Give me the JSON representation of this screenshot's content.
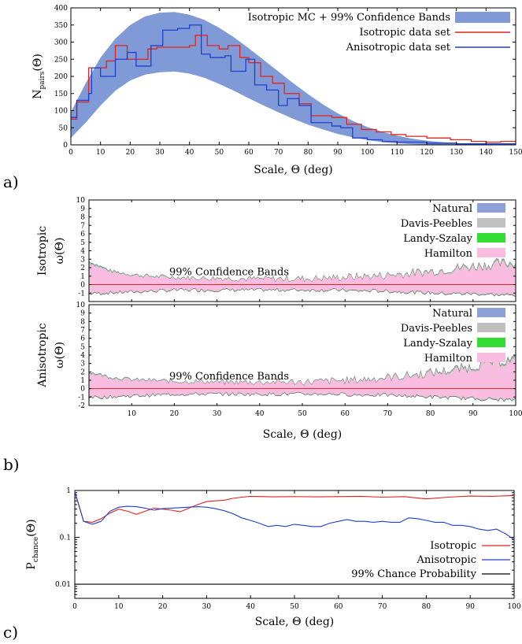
{
  "chart_data": [
    {
      "panel": "a)",
      "type": "line",
      "xlabel": "Scale, Θ (deg)",
      "ylabel_main": "N",
      "ylabel_sub": "pairs",
      "ylabel_tail": "(Θ)",
      "xlim": [
        0,
        150
      ],
      "ylim": [
        0,
        400
      ],
      "xticks": [
        "0",
        "10",
        "20",
        "30",
        "40",
        "50",
        "60",
        "70",
        "80",
        "90",
        "100",
        "110",
        "120",
        "130",
        "140",
        "150"
      ],
      "yticks": [
        "0",
        "50",
        "100",
        "150",
        "200",
        "250",
        "300",
        "350",
        "400"
      ],
      "legend": [
        "Isotropic MC + 99% Confidence Bands",
        "Isotropic data set",
        "Anisotropic data set"
      ],
      "legend_position": "top-right",
      "band": {
        "x": [
          0,
          5,
          10,
          15,
          20,
          25,
          30,
          35,
          40,
          45,
          50,
          55,
          60,
          65,
          70,
          75,
          80,
          85,
          90,
          95,
          100,
          105,
          110,
          115,
          120,
          125,
          130,
          135,
          140
        ],
        "lower": [
          20,
          65,
          115,
          158,
          188,
          205,
          212,
          214,
          208,
          196,
          178,
          158,
          136,
          115,
          95,
          76,
          59,
          45,
          32,
          22,
          14,
          8,
          4,
          2,
          1,
          0,
          0,
          0,
          0
        ],
        "upper": [
          95,
          180,
          255,
          310,
          350,
          375,
          386,
          388,
          380,
          365,
          342,
          314,
          282,
          248,
          214,
          180,
          148,
          118,
          92,
          70,
          52,
          38,
          27,
          18,
          12,
          8,
          5,
          3,
          2
        ]
      },
      "series": [
        {
          "name": "Isotropic data set",
          "color": "#e0231c",
          "steps": [
            [
              0,
              75
            ],
            [
              2,
              125
            ],
            [
              6,
              225
            ],
            [
              12,
              245
            ],
            [
              15,
              290
            ],
            [
              19,
              250
            ],
            [
              22,
              250
            ],
            [
              26,
              280
            ],
            [
              29,
              285
            ],
            [
              34,
              285
            ],
            [
              40,
              290
            ],
            [
              42,
              320
            ],
            [
              46,
              290
            ],
            [
              50,
              280
            ],
            [
              53,
              290
            ],
            [
              57,
              255
            ],
            [
              60,
              240
            ],
            [
              64,
              200
            ],
            [
              68,
              180
            ],
            [
              72,
              150
            ],
            [
              77,
              120
            ],
            [
              81,
              85
            ],
            [
              88,
              80
            ],
            [
              93,
              60
            ],
            [
              98,
              45
            ],
            [
              103,
              38
            ],
            [
              108,
              30
            ],
            [
              113,
              25
            ],
            [
              120,
              20
            ],
            [
              128,
              15
            ],
            [
              135,
              10
            ],
            [
              140,
              8
            ],
            [
              145,
              10
            ],
            [
              150,
              10
            ]
          ]
        },
        {
          "name": "Anisotropic data set",
          "color": "#1e3fd0",
          "steps": [
            [
              0,
              80
            ],
            [
              2,
              130
            ],
            [
              6,
              150
            ],
            [
              7,
              225
            ],
            [
              10,
              200
            ],
            [
              15,
              250
            ],
            [
              19,
              270
            ],
            [
              22,
              230
            ],
            [
              27,
              290
            ],
            [
              31,
              335
            ],
            [
              36,
              340
            ],
            [
              40,
              350
            ],
            [
              44,
              265
            ],
            [
              47,
              255
            ],
            [
              52,
              260
            ],
            [
              54,
              215
            ],
            [
              59,
              250
            ],
            [
              62,
              175
            ],
            [
              66,
              160
            ],
            [
              70,
              115
            ],
            [
              73,
              135
            ],
            [
              77,
              115
            ],
            [
              81,
              65
            ],
            [
              85,
              65
            ],
            [
              88,
              55
            ],
            [
              91,
              50
            ],
            [
              95,
              20
            ],
            [
              100,
              15
            ],
            [
              105,
              10
            ],
            [
              110,
              8
            ],
            [
              120,
              5
            ],
            [
              130,
              3
            ],
            [
              150,
              3
            ]
          ]
        }
      ]
    },
    {
      "panel": "b)",
      "type": "area",
      "xlabel": "Scale, Θ (deg)",
      "xlim": [
        0,
        100
      ],
      "xticks": [
        "10",
        "20",
        "30",
        "40",
        "50",
        "60",
        "70",
        "80",
        "90",
        "100"
      ],
      "subplots": [
        {
          "ylabel_top": "Isotropic",
          "ylabel": "ω(Θ)",
          "ylim": [
            -2,
            10
          ],
          "yticks": [
            "-1",
            "0",
            "1",
            "2",
            "3",
            "4",
            "5",
            "6",
            "7",
            "8",
            "9",
            "10"
          ],
          "annotation": "99% Confidence Bands",
          "legend": [
            "Natural",
            "Davis-Peebles",
            "Landy-Szalay",
            "Hamilton"
          ],
          "legend_colors": [
            "#8da1d8",
            "#c0c0c0",
            "#33dd33",
            "#f8bde0"
          ],
          "band_upper_approx": [
            2.5,
            1.4,
            1.0,
            0.8,
            0.7,
            0.6,
            0.6,
            0.5,
            0.5,
            0.5,
            0.5,
            0.6,
            0.7,
            0.8,
            1.0,
            1.2,
            1.5,
            1.8,
            2.0,
            2.2
          ],
          "band_lower_approx": [
            -1.0,
            -0.9,
            -0.8,
            -0.7,
            -0.6,
            -0.6,
            -0.6,
            -0.6,
            -0.6,
            -0.6,
            -0.6,
            -0.6,
            -0.7,
            -0.7,
            -0.8,
            -0.9,
            -1.0,
            -1.0,
            -1.1,
            -1.2
          ]
        },
        {
          "ylabel_top": "Anisotropic",
          "ylabel": "ω(Θ)",
          "ylim": [
            -2,
            10
          ],
          "yticks": [
            "-2",
            "-1",
            "0",
            "1",
            "2",
            "3",
            "4",
            "5",
            "6",
            "7",
            "8",
            "9",
            "10"
          ],
          "annotation": "99% Confidence Bands",
          "legend": [
            "Natural",
            "Davis-Peebles",
            "Landy-Szalay",
            "Hamilton"
          ],
          "legend_colors": [
            "#8da1d8",
            "#c0c0c0",
            "#33dd33",
            "#f8bde0"
          ],
          "band_upper_approx": [
            1.8,
            1.2,
            0.9,
            0.8,
            0.7,
            0.7,
            0.6,
            0.6,
            0.6,
            0.6,
            0.6,
            0.7,
            0.8,
            1.0,
            1.2,
            1.5,
            1.8,
            2.2,
            2.8,
            3.0
          ],
          "band_lower_approx": [
            -1.0,
            -0.9,
            -0.8,
            -0.7,
            -0.6,
            -0.6,
            -0.6,
            -0.6,
            -0.6,
            -0.6,
            -0.6,
            -0.6,
            -0.7,
            -0.7,
            -0.8,
            -0.9,
            -1.0,
            -1.1,
            -1.2,
            -1.3
          ]
        }
      ]
    },
    {
      "panel": "c)",
      "type": "line",
      "xlabel": "Scale, Θ (deg)",
      "ylabel_main": "P",
      "ylabel_sub": "chance",
      "ylabel_tail": "(Θ)",
      "xlim": [
        0,
        100
      ],
      "yscale": "log",
      "ylim": [
        0.005,
        1
      ],
      "xticks": [
        "0",
        "10",
        "20",
        "30",
        "40",
        "50",
        "60",
        "70",
        "80",
        "90",
        "100"
      ],
      "yticks": [
        "0.01",
        "0.1",
        "1"
      ],
      "legend": [
        "Isotropic",
        "Anisotropic",
        "99% Chance Probability"
      ],
      "legend_position": "bottom-right",
      "series": [
        {
          "name": "Isotropic",
          "color": "#e0231c",
          "x": [
            0,
            2,
            4,
            6,
            8,
            10,
            12,
            14,
            16,
            18,
            20,
            22,
            24,
            26,
            28,
            30,
            32,
            34,
            36,
            38,
            40,
            45,
            50,
            55,
            60,
            65,
            70,
            75,
            80,
            85,
            90,
            95,
            100
          ],
          "y": [
            0.95,
            0.22,
            0.21,
            0.25,
            0.33,
            0.4,
            0.36,
            0.31,
            0.36,
            0.42,
            0.4,
            0.38,
            0.35,
            0.42,
            0.5,
            0.58,
            0.6,
            0.62,
            0.68,
            0.72,
            0.75,
            0.73,
            0.74,
            0.73,
            0.74,
            0.75,
            0.72,
            0.74,
            0.66,
            0.72,
            0.76,
            0.75,
            0.78
          ]
        },
        {
          "name": "Anisotropic",
          "color": "#1e3fd0",
          "x": [
            0,
            2,
            4,
            6,
            8,
            10,
            12,
            14,
            16,
            18,
            20,
            22,
            24,
            26,
            28,
            30,
            32,
            34,
            36,
            38,
            40,
            42,
            44,
            46,
            48,
            50,
            52,
            54,
            56,
            58,
            60,
            62,
            64,
            66,
            68,
            70,
            72,
            74,
            76,
            78,
            80,
            82,
            84,
            86,
            88,
            90,
            92,
            94,
            96,
            98,
            100
          ],
          "y": [
            0.95,
            0.22,
            0.19,
            0.22,
            0.36,
            0.44,
            0.46,
            0.45,
            0.42,
            0.38,
            0.41,
            0.42,
            0.43,
            0.44,
            0.45,
            0.44,
            0.41,
            0.37,
            0.32,
            0.26,
            0.23,
            0.2,
            0.17,
            0.18,
            0.17,
            0.19,
            0.18,
            0.17,
            0.17,
            0.2,
            0.22,
            0.24,
            0.22,
            0.22,
            0.21,
            0.22,
            0.21,
            0.21,
            0.26,
            0.25,
            0.23,
            0.21,
            0.21,
            0.18,
            0.18,
            0.17,
            0.15,
            0.14,
            0.15,
            0.12,
            0.09
          ]
        },
        {
          "name": "99% Chance Probability",
          "color": "#000000",
          "x": [
            0,
            100
          ],
          "y": [
            0.01,
            0.01
          ]
        }
      ]
    }
  ]
}
